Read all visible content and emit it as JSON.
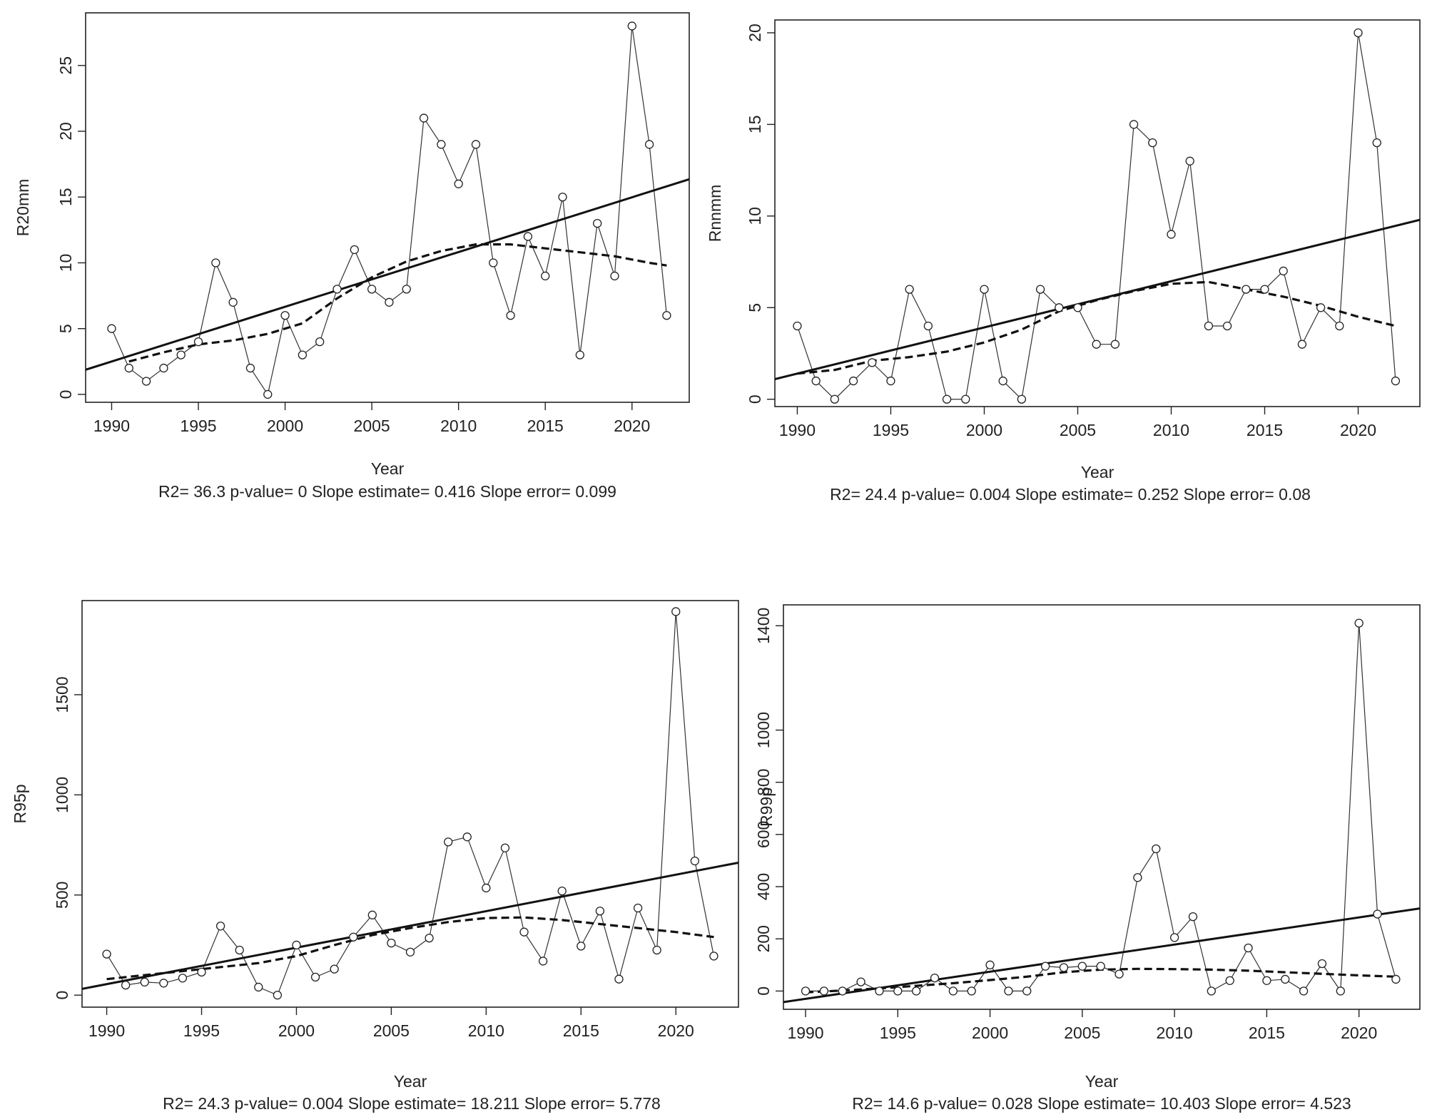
{
  "chart_data": [
    {
      "type": "line",
      "ylabel": "R20mm",
      "xlabel": "Year",
      "x": [
        1990,
        1991,
        1992,
        1993,
        1994,
        1995,
        1996,
        1997,
        1998,
        1999,
        2000,
        2001,
        2002,
        2003,
        2004,
        2005,
        2006,
        2007,
        2008,
        2009,
        2010,
        2011,
        2012,
        2013,
        2014,
        2015,
        2016,
        2017,
        2018,
        2019,
        2020,
        2021,
        2022
      ],
      "values": [
        5,
        2,
        1,
        2,
        3,
        4,
        10,
        7,
        2,
        0,
        6,
        3,
        4,
        8,
        11,
        8,
        7,
        8,
        21,
        19,
        16,
        19,
        10,
        6,
        12,
        9,
        15,
        3,
        13,
        9,
        28,
        19,
        6
      ],
      "xlim": [
        1988.5,
        2023.3
      ],
      "ylim": [
        -0.6,
        29
      ],
      "xticks": [
        1990,
        1995,
        2000,
        2005,
        2010,
        2015,
        2020
      ],
      "yticks": [
        0,
        5,
        10,
        15,
        20,
        25
      ],
      "trend": {
        "intercept_at_1990": 2.5,
        "slope": 0.416
      },
      "smooth": {
        "x": [
          1991,
          1993,
          1995,
          1997,
          1999,
          2001,
          2003,
          2005,
          2007,
          2009,
          2011,
          2013,
          2015,
          2017,
          2019,
          2021,
          2022
        ],
        "y": [
          2.5,
          3.2,
          3.8,
          4.1,
          4.6,
          5.4,
          7.3,
          8.9,
          10.1,
          10.9,
          11.4,
          11.4,
          11.1,
          10.8,
          10.5,
          10.0,
          9.8
        ]
      },
      "stats": {
        "r2": "36.3",
        "p_value": "0",
        "slope_estimate": "0.416",
        "slope_error": "0.099"
      }
    },
    {
      "type": "line",
      "ylabel": "Rnnmm",
      "xlabel": "Year",
      "x": [
        1990,
        1991,
        1992,
        1993,
        1994,
        1995,
        1996,
        1997,
        1998,
        1999,
        2000,
        2001,
        2002,
        2003,
        2004,
        2005,
        2006,
        2007,
        2008,
        2009,
        2010,
        2011,
        2012,
        2013,
        2014,
        2015,
        2016,
        2017,
        2018,
        2019,
        2020,
        2021,
        2022
      ],
      "values": [
        4,
        1,
        0,
        1,
        2,
        1,
        6,
        4,
        0,
        0,
        6,
        1,
        0,
        6,
        5,
        5,
        3,
        3,
        15,
        14,
        9,
        13,
        4,
        4,
        6,
        6,
        7,
        3,
        5,
        4,
        20,
        14,
        1
      ],
      "xlim": [
        1988.8,
        2023.3
      ],
      "ylim": [
        -0.4,
        20.7
      ],
      "xticks": [
        1990,
        1995,
        2000,
        2005,
        2010,
        2015,
        2020
      ],
      "yticks": [
        0,
        5,
        10,
        15,
        20
      ],
      "trend": {
        "intercept_at_1990": 1.4,
        "slope": 0.252
      },
      "smooth": {
        "x": [
          1990,
          1992,
          1994,
          1996,
          1998,
          2000,
          2002,
          2004,
          2006,
          2008,
          2010,
          2012,
          2014,
          2016,
          2018,
          2020,
          2022
        ],
        "y": [
          1.4,
          1.6,
          2.1,
          2.3,
          2.6,
          3.1,
          3.8,
          4.8,
          5.4,
          5.9,
          6.3,
          6.4,
          6.0,
          5.6,
          5.1,
          4.5,
          4.0
        ]
      },
      "stats": {
        "r2": "24.4",
        "p_value": "0.004",
        "slope_estimate": "0.252",
        "slope_error": "0.08"
      }
    },
    {
      "type": "line",
      "ylabel": "R95p",
      "xlabel": "Year",
      "x": [
        1990,
        1991,
        1992,
        1993,
        1994,
        1995,
        1996,
        1997,
        1998,
        1999,
        2000,
        2001,
        2002,
        2003,
        2004,
        2005,
        2006,
        2007,
        2008,
        2009,
        2010,
        2011,
        2012,
        2013,
        2014,
        2015,
        2016,
        2017,
        2018,
        2019,
        2020,
        2021,
        2022
      ],
      "values": [
        205,
        50,
        65,
        60,
        85,
        115,
        345,
        225,
        40,
        0,
        250,
        90,
        130,
        290,
        400,
        260,
        215,
        285,
        765,
        790,
        535,
        735,
        315,
        170,
        520,
        245,
        420,
        80,
        435,
        225,
        1915,
        670,
        195
      ],
      "xlim": [
        1988.7,
        2023.3
      ],
      "ylim": [
        -60,
        1970
      ],
      "xticks": [
        1990,
        1995,
        2000,
        2005,
        2010,
        2015,
        2020
      ],
      "yticks": [
        0,
        500,
        1000,
        1500
      ],
      "trend": {
        "intercept_at_1990": 55,
        "slope": 18.211
      },
      "smooth": {
        "x": [
          1990,
          1992,
          1994,
          1996,
          1998,
          2000,
          2002,
          2004,
          2006,
          2008,
          2010,
          2012,
          2014,
          2016,
          2018,
          2020,
          2022
        ],
        "y": [
          80,
          100,
          120,
          140,
          160,
          195,
          250,
          300,
          335,
          365,
          385,
          388,
          375,
          355,
          335,
          315,
          290
        ]
      },
      "stats": {
        "r2": "24.3",
        "p_value": "0.004",
        "slope_estimate": "18.211",
        "slope_error": "5.778"
      }
    },
    {
      "type": "line",
      "ylabel": "R99p",
      "xlabel": "Year",
      "x": [
        1990,
        1991,
        1992,
        1993,
        1994,
        1995,
        1996,
        1997,
        1998,
        1999,
        2000,
        2001,
        2002,
        2003,
        2004,
        2005,
        2006,
        2007,
        2008,
        2009,
        2010,
        2011,
        2012,
        2013,
        2014,
        2015,
        2016,
        2017,
        2018,
        2019,
        2020,
        2021,
        2022
      ],
      "values": [
        0,
        0,
        0,
        35,
        0,
        0,
        0,
        50,
        0,
        0,
        100,
        0,
        0,
        95,
        90,
        95,
        95,
        65,
        435,
        545,
        205,
        285,
        0,
        40,
        165,
        40,
        45,
        0,
        105,
        0,
        1410,
        295,
        45
      ],
      "xlim": [
        1988.8,
        2023.3
      ],
      "ylim": [
        -70,
        1480
      ],
      "xticks": [
        1990,
        1995,
        2000,
        2005,
        2010,
        2015,
        2020
      ],
      "yticks": [
        0,
        200,
        400,
        600,
        800,
        1000,
        1400
      ],
      "trend": {
        "intercept_at_1990": -30,
        "slope": 10.403
      },
      "smooth": {
        "x": [
          1990,
          1992,
          1994,
          1996,
          1998,
          2000,
          2002,
          2004,
          2006,
          2008,
          2010,
          2012,
          2014,
          2016,
          2018,
          2020,
          2022
        ],
        "y": [
          -5,
          2,
          10,
          20,
          30,
          42,
          55,
          72,
          82,
          85,
          84,
          82,
          78,
          72,
          66,
          60,
          55
        ]
      },
      "stats": {
        "r2": "14.6",
        "p_value": "0.028",
        "slope_estimate": "10.403",
        "slope_error": "4.523"
      }
    }
  ]
}
